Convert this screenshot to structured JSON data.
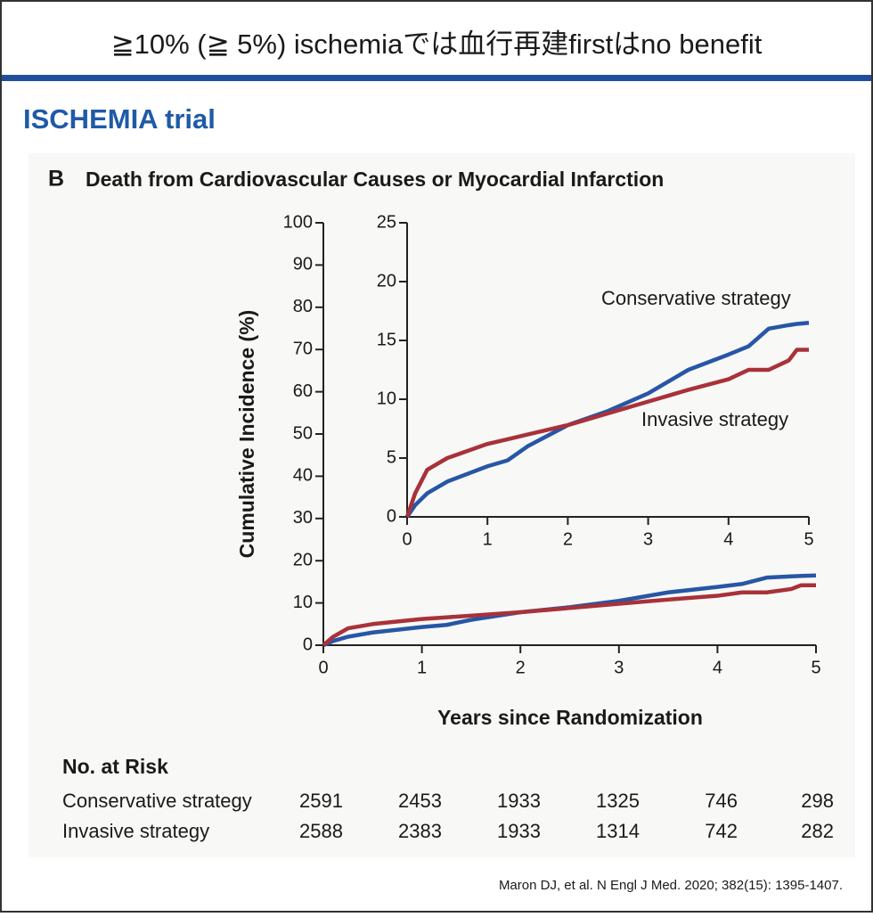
{
  "header": {
    "title": "≧10% (≧ 5%) ischemiaでは血行再建firstはno benefit",
    "subtitle": "ISCHEMIA trial"
  },
  "chart_data": [
    {
      "type": "line",
      "panel": "B",
      "title": "Death from Cardiovascular Causes or Myocardial Infarction",
      "x_label": "Years since Randomization",
      "y_label": "Cumulative Incidence (%)",
      "x": [
        0,
        0.1,
        0.25,
        0.5,
        1,
        1.25,
        1.5,
        2,
        2.5,
        3,
        3.25,
        3.5,
        4,
        4.25,
        4.5,
        4.75,
        4.85,
        5
      ],
      "series": [
        {
          "color": "#2756a6",
          "values": [
            0,
            1,
            2,
            3,
            4.3,
            4.8,
            6,
            7.8,
            9,
            10.5,
            11.5,
            12.5,
            13.8,
            14.5,
            16,
            16.3,
            16.4,
            16.5
          ]
        },
        {
          "color": "#a8323a",
          "values": [
            0,
            2,
            4,
            5,
            6.2,
            6.6,
            7,
            7.8,
            8.8,
            9.8,
            10.3,
            10.8,
            11.7,
            12.5,
            12.5,
            13.3,
            14.2,
            14.2
          ]
        }
      ],
      "xlim": [
        0,
        5
      ],
      "ylim": [
        0,
        100
      ],
      "xticks": [
        0,
        1,
        2,
        3,
        4,
        5
      ],
      "yticks": [
        0,
        10,
        20,
        30,
        40,
        50,
        60,
        70,
        80,
        90,
        100
      ]
    },
    {
      "type": "line",
      "x": [
        0,
        0.1,
        0.25,
        0.5,
        1,
        1.25,
        1.5,
        2,
        2.5,
        3,
        3.25,
        3.5,
        4,
        4.25,
        4.5,
        4.75,
        4.85,
        5
      ],
      "series": [
        {
          "name": "Conservative strategy",
          "color": "#2756a6",
          "values": [
            0,
            1,
            2,
            3,
            4.3,
            4.8,
            6,
            7.8,
            9,
            10.5,
            11.5,
            12.5,
            13.8,
            14.5,
            16,
            16.3,
            16.4,
            16.5
          ]
        },
        {
          "name": "Invasive strategy",
          "color": "#a8323a",
          "values": [
            0,
            2,
            4,
            5,
            6.2,
            6.6,
            7,
            7.8,
            8.8,
            9.8,
            10.3,
            10.8,
            11.7,
            12.5,
            12.5,
            13.3,
            14.2,
            14.2
          ]
        }
      ],
      "xlim": [
        0,
        5
      ],
      "ylim": [
        0,
        25
      ],
      "xticks": [
        0,
        1,
        2,
        3,
        4,
        5
      ],
      "yticks": [
        0,
        5,
        10,
        15,
        20,
        25
      ]
    }
  ],
  "risk_table": {
    "title": "No. at Risk",
    "rows": [
      {
        "label": "Conservative strategy",
        "values": [
          2591,
          2453,
          1933,
          1325,
          746,
          298
        ]
      },
      {
        "label": "Invasive strategy",
        "values": [
          2588,
          2383,
          1933,
          1314,
          742,
          282
        ]
      }
    ]
  },
  "citation": "Maron DJ, et al. N Engl J Med. 2020; 382(15): 1395-1407."
}
